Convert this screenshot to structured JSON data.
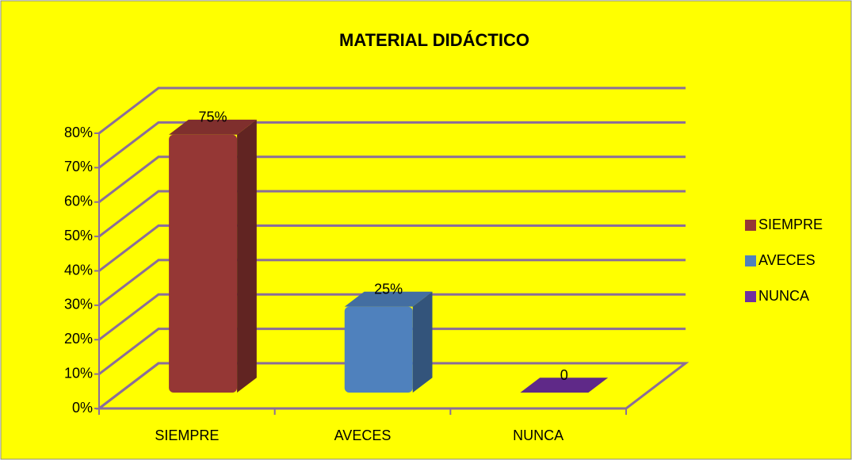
{
  "chart_data": {
    "type": "bar3d",
    "title": "MATERIAL DIDÁCTICO",
    "categories": [
      "SIEMPRE",
      "AVECES",
      "NUNCA"
    ],
    "values": [
      75,
      25,
      0
    ],
    "value_labels": [
      "75%",
      "25%",
      "0"
    ],
    "colors": [
      "#953735",
      "#4f81bd",
      "#7030a0"
    ],
    "ylim": [
      0,
      80
    ],
    "yticks": [
      {
        "value": 0,
        "label": "0%"
      },
      {
        "value": 10,
        "label": "10%"
      },
      {
        "value": 20,
        "label": "20%"
      },
      {
        "value": 30,
        "label": "30%"
      },
      {
        "value": 40,
        "label": "40%"
      },
      {
        "value": 50,
        "label": "50%"
      },
      {
        "value": 60,
        "label": "60%"
      },
      {
        "value": 70,
        "label": "70%"
      },
      {
        "value": 80,
        "label": "80%"
      }
    ],
    "grid": true,
    "legend": "right"
  }
}
